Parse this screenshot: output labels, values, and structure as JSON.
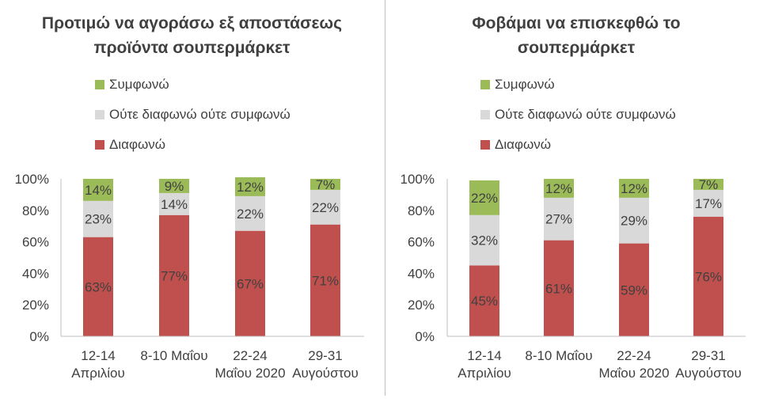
{
  "chart_data": [
    {
      "type": "bar",
      "stacked": true,
      "title_line1": "Προτιμώ να αγοράσω εξ αποστάσεως",
      "title_line2": "προϊόντα σουπερμάρκετ",
      "categories": [
        [
          "12-14",
          "Απριλίου"
        ],
        [
          "8-10 Μαΐου"
        ],
        [
          "22-24",
          "Μαΐου 2020"
        ],
        [
          "29-31",
          "Αυγούστου"
        ]
      ],
      "series": [
        {
          "name": "Διαφωνώ",
          "color": "#c0504d",
          "values": [
            63,
            77,
            67,
            71
          ],
          "labels": [
            "63%",
            "77%",
            "67%",
            "71%"
          ]
        },
        {
          "name": "Ούτε διαφωνώ ούτε συμφωνώ",
          "color": "#d9d9d9",
          "values": [
            23,
            14,
            22,
            22
          ],
          "labels": [
            "23%",
            "14%",
            "22%",
            "22%"
          ]
        },
        {
          "name": "Συμφωνώ",
          "color": "#9bbb59",
          "values": [
            14,
            9,
            12,
            7
          ],
          "labels": [
            "14%",
            "9%",
            "12%",
            "7%"
          ]
        }
      ],
      "legend_order": [
        2,
        1,
        0
      ],
      "ylim": [
        0,
        100
      ],
      "yticks": [
        "0%",
        "20%",
        "40%",
        "60%",
        "80%",
        "100%"
      ],
      "grid": false,
      "legend_position": "top"
    },
    {
      "type": "bar",
      "stacked": true,
      "title_line1": "Φοβάμαι να επισκεφθώ το",
      "title_line2": "σουπερμάρκετ",
      "categories": [
        [
          "12-14",
          "Απριλίου"
        ],
        [
          "8-10 Μαΐου"
        ],
        [
          "22-24",
          "Μαΐου 2020"
        ],
        [
          "29-31",
          "Αυγούστου"
        ]
      ],
      "series": [
        {
          "name": "Διαφωνώ",
          "color": "#c0504d",
          "values": [
            45,
            61,
            59,
            76
          ],
          "labels": [
            "45%",
            "61%",
            "59%",
            "76%"
          ]
        },
        {
          "name": "Ούτε διαφωνώ ούτε συμφωνώ",
          "color": "#d9d9d9",
          "values": [
            32,
            27,
            29,
            17
          ],
          "labels": [
            "32%",
            "27%",
            "29%",
            "17%"
          ]
        },
        {
          "name": "Συμφωνώ",
          "color": "#9bbb59",
          "values": [
            22,
            12,
            12,
            7
          ],
          "labels": [
            "22%",
            "12%",
            "12%",
            "7%"
          ]
        }
      ],
      "legend_order": [
        2,
        1,
        0
      ],
      "ylim": [
        0,
        100
      ],
      "yticks": [
        "0%",
        "20%",
        "40%",
        "60%",
        "80%",
        "100%"
      ],
      "grid": false,
      "legend_position": "top"
    }
  ]
}
